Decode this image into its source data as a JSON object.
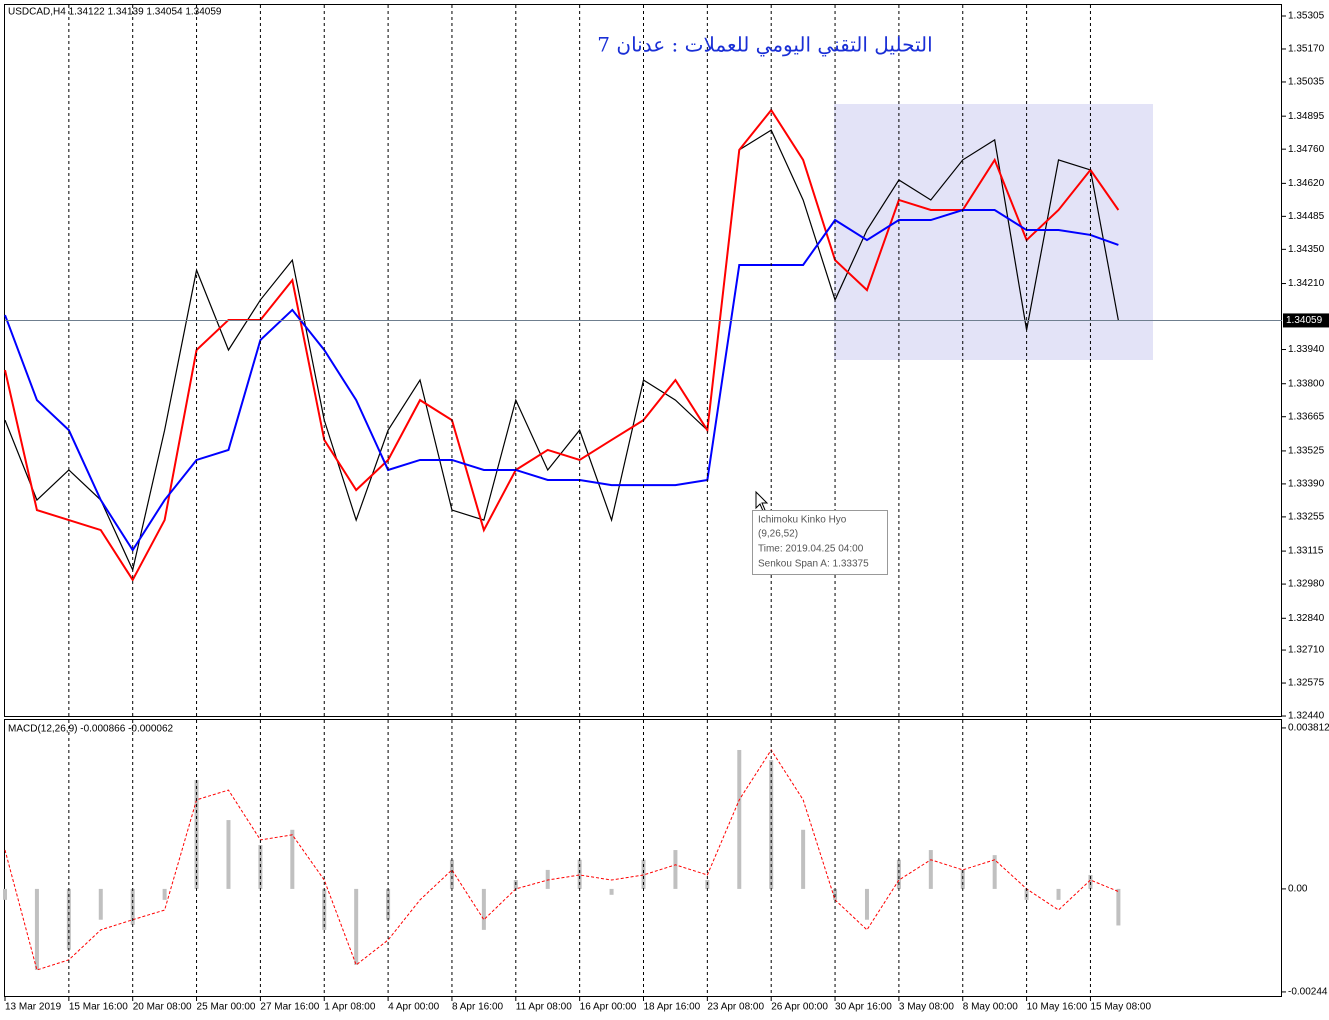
{
  "header": "USDCAD,H4  1.34122 1.34139 1.34054 1.34059",
  "title": "التحليل التقني اليومي للعملات : عدنان 7",
  "tooltip": [
    "Ichimoku Kinko Hyo",
    "(9,26,52)",
    "Time: 2019.04.25 04:00",
    "Senkou Span A: 1.33375"
  ],
  "chart_data": [
    {
      "type": "line",
      "x": [
        0,
        8,
        16,
        24,
        32,
        40,
        48,
        56,
        64,
        72,
        80,
        88,
        96,
        104,
        112,
        120,
        128,
        136,
        144,
        152,
        160,
        168,
        176,
        184,
        192,
        200,
        208,
        216,
        224,
        232,
        240,
        248,
        256,
        264,
        272,
        279
      ],
      "xlim": [
        0,
        320
      ],
      "ylim": [
        1.32436,
        1.3535
      ],
      "yticks": [
        1.35305,
        {
          "value": 1.3517,
          "label": "1.35170"
        },
        1.35035,
        1.34895,
        {
          "value": 1.3476,
          "label": "1.34760"
        },
        {
          "value": 1.3462,
          "label": "1.34620"
        },
        1.34485,
        {
          "value": 1.3435,
          "label": "1.34350"
        },
        {
          "value": 1.3421,
          "label": "1.34210"
        },
        {
          "value": 1.3394,
          "label": "1.33940"
        },
        {
          "value": 1.338,
          "label": "1.33800"
        },
        1.33665,
        1.33525,
        {
          "value": 1.3339,
          "label": "1.33390"
        },
        1.33255,
        1.33115,
        {
          "value": 1.3298,
          "label": "1.32980"
        },
        {
          "value": 1.3284,
          "label": "1.32840"
        },
        {
          "value": 1.3271,
          "label": "1.32710"
        },
        1.32575,
        {
          "value": 1.3244,
          "label": "1.32440"
        }
      ],
      "last_price": 1.34059,
      "series": [
        {
          "color": "#000000",
          "values": [
            1.33651,
            1.33324,
            1.33447,
            1.33324,
            1.33038,
            1.3361,
            1.34265,
            1.33938,
            1.34143,
            1.34306,
            1.33651,
            1.33242,
            1.3361,
            1.33815,
            1.33283,
            1.33242,
            1.33733,
            1.33447,
            1.3361,
            1.33242,
            1.33815,
            1.33733,
            1.3361,
            1.34757,
            1.34838,
            1.34552,
            1.34143,
            1.34429,
            1.34634,
            1.34552,
            1.34716,
            1.34798,
            1.3402,
            1.34716,
            1.34675,
            1.34059
          ]
        },
        {
          "color": "#ff0000",
          "values": [
            1.33856,
            1.33283,
            1.33242,
            1.33201,
            1.32997,
            1.33242,
            1.33938,
            1.34061,
            1.34061,
            1.34224,
            1.3357,
            1.33365,
            1.33488,
            1.33733,
            1.33651,
            1.33201,
            1.33447,
            1.33529,
            1.33488,
            1.3357,
            1.33651,
            1.33815,
            1.3361,
            1.34757,
            1.3492,
            1.34716,
            1.34306,
            1.34183,
            1.34552,
            1.34511,
            1.34511,
            1.34716,
            1.34388,
            1.34511,
            1.34675,
            1.34511
          ]
        },
        {
          "color": "#0000ff",
          "values": [
            1.34081,
            1.33733,
            1.3361,
            1.33324,
            1.33119,
            1.33324,
            1.33488,
            1.33529,
            1.33979,
            1.34102,
            1.33938,
            1.33733,
            1.33447,
            1.33488,
            1.33488,
            1.33447,
            1.33447,
            1.33406,
            1.33406,
            1.33385,
            1.33385,
            1.33385,
            1.33406,
            1.34286,
            1.34286,
            1.34286,
            1.3447,
            1.34388,
            1.3447,
            1.3447,
            1.34511,
            1.34511,
            1.34429,
            1.34429,
            1.34409,
            1.34368
          ]
        }
      ]
    },
    {
      "type": "bar",
      "label": "MACD(12,26,9) -0.000866 -0.000062",
      "x": [
        0,
        8,
        16,
        24,
        32,
        40,
        48,
        56,
        64,
        72,
        80,
        88,
        96,
        104,
        112,
        120,
        128,
        136,
        144,
        152,
        160,
        168,
        176,
        184,
        192,
        200,
        208,
        216,
        224,
        232,
        240,
        248,
        256,
        264,
        272,
        279
      ],
      "xlim": [
        0,
        320
      ],
      "ylim": [
        -0.00256,
        0.004
      ],
      "yticks": [
        0.003812,
        {
          "value": 0,
          "label": "0.00"
        },
        -0.00244
      ],
      "xticks": [
        {
          "value": 0,
          "label": "13 Mar 2019"
        },
        {
          "value": 16,
          "label": "15 Mar 16:00"
        },
        {
          "value": 32,
          "label": "20 Mar 08:00"
        },
        {
          "value": 48,
          "label": "25 Mar 00:00"
        },
        {
          "value": 64,
          "label": "27 Mar 16:00"
        },
        {
          "value": 80,
          "label": "1 Apr 08:00"
        },
        {
          "value": 96,
          "label": "4 Apr 00:00"
        },
        {
          "value": 112,
          "label": "8 Apr 16:00"
        },
        {
          "value": 128,
          "label": "11 Apr 08:00"
        },
        {
          "value": 144,
          "label": "16 Apr 00:00"
        },
        {
          "value": 160,
          "label": "18 Apr 16:00"
        },
        {
          "value": 176,
          "label": "23 Apr 08:00"
        },
        {
          "value": 192,
          "label": "26 Apr 00:00"
        },
        {
          "value": 208,
          "label": "30 Apr 16:00"
        },
        {
          "value": 224,
          "label": "3 May 08:00"
        },
        {
          "value": 240,
          "label": "8 May 00:00"
        },
        {
          "value": 256,
          "label": "10 May 16:00"
        },
        {
          "value": 272,
          "label": "15 May 08:00"
        }
      ],
      "series": [
        {
          "color": "#c0c0c0",
          "values": [
            -0.00026,
            -0.00192,
            -0.00144,
            -0.00073,
            -0.00085,
            -0.00026,
            0.00258,
            0.00163,
            0.00104,
            0.0014,
            -0.00097,
            -0.0018,
            -0.00073,
            0,
            0.00069,
            -0.00097,
            0.00021,
            0.00045,
            0.00069,
            -0.00014,
            0.00069,
            0.00092,
            0.00021,
            0.00329,
            0.00305,
            0.0014,
            -0.00026,
            -0.00073,
            0.00069,
            0.00092,
            0.00045,
            0.0008,
            -0.00026,
            -0.00026,
            0.00033,
            -0.000866
          ]
        },
        {
          "color": "#ff0000",
          "values": [
            0.00092,
            -0.00192,
            -0.00168,
            -0.00097,
            -0.00073,
            -0.0005,
            0.00211,
            0.00234,
            0.00116,
            0.00128,
            0.00021,
            -0.0018,
            -0.00121,
            -0.00026,
            0.00045,
            -0.00073,
            0,
            0.00021,
            0.00033,
            0.00021,
            0.00033,
            0.00057,
            0.00033,
            0.00211,
            0.00329,
            0.00211,
            -0.00026,
            -0.00097,
            0.00021,
            0.00069,
            0.00045,
            0.00069,
            0,
            -0.0005,
            0.00021,
            -6.2e-05
          ]
        }
      ]
    }
  ]
}
